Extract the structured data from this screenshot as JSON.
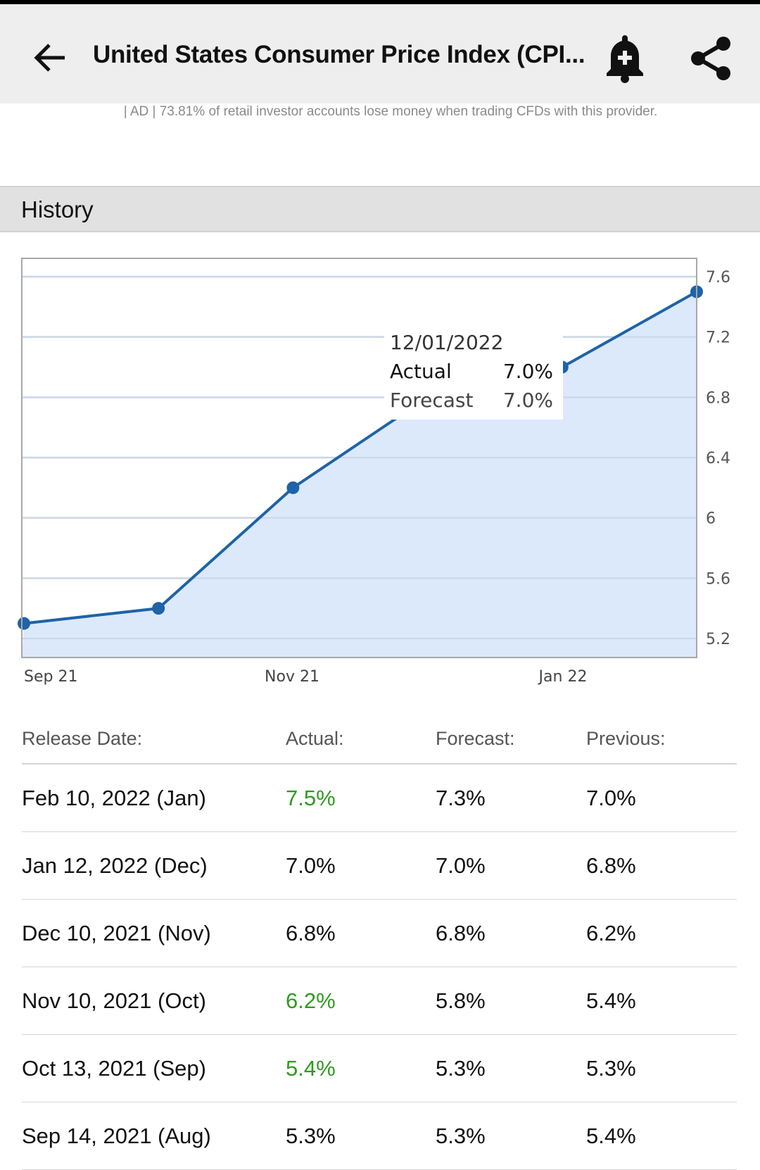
{
  "header": {
    "title": "United States Consumer Price Index (CPI...",
    "back_icon": "arrow-left-icon",
    "alert_icon": "bell-plus-icon",
    "share_icon": "share-icon"
  },
  "ad": {
    "text": "| AD | 73.81% of retail investor accounts lose money when trading CFDs with this provider."
  },
  "section": {
    "title": "History"
  },
  "tooltip": {
    "date": "12/01/2022",
    "actual_label": "Actual",
    "actual_value": "7.0%",
    "forecast_label": "Forecast",
    "forecast_value": "7.0%"
  },
  "chart_data": {
    "type": "area",
    "x": [
      "Sep 21",
      "Oct 21",
      "Nov 21",
      "Dec 21",
      "Jan 22",
      "Feb 22"
    ],
    "values": [
      5.3,
      5.4,
      6.2,
      6.8,
      7.0,
      7.5
    ],
    "x_tick_labels": [
      "Sep 21",
      "Nov 21",
      "Jan 22"
    ],
    "y_ticks": [
      5.2,
      5.6,
      6.0,
      6.4,
      6.8,
      7.2,
      7.6
    ],
    "ylim": [
      5.08,
      7.7
    ],
    "line_color": "#1f63a8",
    "fill_color": "#d8e7fb",
    "grid": true
  },
  "table": {
    "headers": [
      "Release Date:",
      "Actual:",
      "Forecast:",
      "Previous:"
    ],
    "rows": [
      {
        "date": "Feb 10, 2022 (Jan)",
        "actual": "7.5%",
        "forecast": "7.3%",
        "previous": "7.0%",
        "beat": true
      },
      {
        "date": "Jan 12, 2022 (Dec)",
        "actual": "7.0%",
        "forecast": "7.0%",
        "previous": "6.8%",
        "beat": false
      },
      {
        "date": "Dec 10, 2021 (Nov)",
        "actual": "6.8%",
        "forecast": "6.8%",
        "previous": "6.2%",
        "beat": false
      },
      {
        "date": "Nov 10, 2021 (Oct)",
        "actual": "6.2%",
        "forecast": "5.8%",
        "previous": "5.4%",
        "beat": true
      },
      {
        "date": "Oct 13, 2021 (Sep)",
        "actual": "5.4%",
        "forecast": "5.3%",
        "previous": "5.3%",
        "beat": true
      },
      {
        "date": "Sep 14, 2021 (Aug)",
        "actual": "5.3%",
        "forecast": "5.3%",
        "previous": "5.4%",
        "beat": false
      }
    ]
  }
}
